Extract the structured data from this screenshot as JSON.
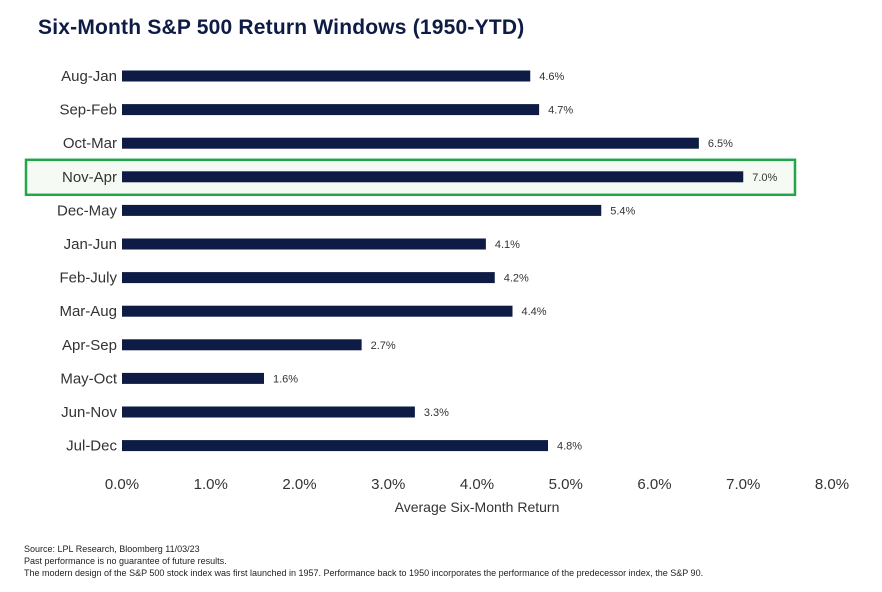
{
  "chart_data": {
    "type": "bar",
    "orientation": "horizontal",
    "title": "Six-Month S&P 500 Return Windows (1950-YTD)",
    "xlabel": "Average Six-Month Return",
    "ylabel": "",
    "categories": [
      "Aug-Jan",
      "Sep-Feb",
      "Oct-Mar",
      "Nov-Apr",
      "Dec-May",
      "Jan-Jun",
      "Feb-July",
      "Mar-Aug",
      "Apr-Sep",
      "May-Oct",
      "Jun-Nov",
      "Jul-Dec"
    ],
    "values": [
      4.6,
      4.7,
      6.5,
      7.0,
      5.4,
      4.1,
      4.2,
      4.4,
      2.7,
      1.6,
      3.3,
      4.8
    ],
    "value_labels": [
      "4.6%",
      "4.7%",
      "6.5%",
      "7.0%",
      "5.4%",
      "4.1%",
      "4.2%",
      "4.4%",
      "2.7%",
      "1.6%",
      "3.3%",
      "4.8%"
    ],
    "xlim": [
      0,
      8
    ],
    "xticks": [
      0,
      1,
      2,
      3,
      4,
      5,
      6,
      7,
      8
    ],
    "xtick_labels": [
      "0.0%",
      "1.0%",
      "2.0%",
      "3.0%",
      "4.0%",
      "5.0%",
      "6.0%",
      "7.0%",
      "8.0%"
    ],
    "highlight_category": "Nov-Apr",
    "grid": false,
    "legend": "none",
    "colors": {
      "bar": "#0d1b45",
      "highlight_border": "#22a64a",
      "highlight_fill": "#f5faf5",
      "title": "#0d1b45"
    }
  },
  "footer": {
    "source": "Source: LPL Research, Bloomberg 11/03/23",
    "disclaimer": "Past performance is no guarantee of future results.",
    "note": "The modern design of the S&P 500 stock index was first launched in 1957. Performance back to 1950 incorporates the performance of the predecessor index, the S&P 90."
  }
}
